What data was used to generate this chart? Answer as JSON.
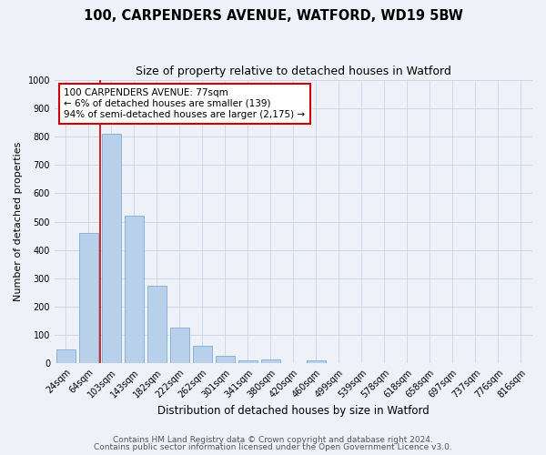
{
  "title1": "100, CARPENDERS AVENUE, WATFORD, WD19 5BW",
  "title2": "Size of property relative to detached houses in Watford",
  "xlabel": "Distribution of detached houses by size in Watford",
  "ylabel": "Number of detached properties",
  "categories": [
    "24sqm",
    "64sqm",
    "103sqm",
    "143sqm",
    "182sqm",
    "222sqm",
    "262sqm",
    "301sqm",
    "341sqm",
    "380sqm",
    "420sqm",
    "460sqm",
    "499sqm",
    "539sqm",
    "578sqm",
    "618sqm",
    "658sqm",
    "697sqm",
    "737sqm",
    "776sqm",
    "816sqm"
  ],
  "values": [
    50,
    460,
    810,
    520,
    275,
    125,
    60,
    25,
    10,
    12,
    0,
    10,
    0,
    0,
    0,
    0,
    0,
    0,
    0,
    0,
    0
  ],
  "bar_color": "#b8d0ea",
  "bar_edge_color": "#7aadd4",
  "grid_color": "#c8d4e8",
  "background_color": "#eef2f8",
  "vline_color": "#cc0000",
  "annotation_text": "100 CARPENDERS AVENUE: 77sqm\n← 6% of detached houses are smaller (139)\n94% of semi-detached houses are larger (2,175) →",
  "annotation_box_color": "#ffffff",
  "annotation_box_edge": "#cc0000",
  "ylim": [
    0,
    1000
  ],
  "yticks": [
    0,
    100,
    200,
    300,
    400,
    500,
    600,
    700,
    800,
    900,
    1000
  ],
  "footnote1": "Contains HM Land Registry data © Crown copyright and database right 2024.",
  "footnote2": "Contains public sector information licensed under the Open Government Licence v3.0.",
  "title1_fontsize": 10.5,
  "title2_fontsize": 9,
  "xlabel_fontsize": 8.5,
  "ylabel_fontsize": 8,
  "tick_fontsize": 7,
  "annotation_fontsize": 7.5,
  "footnote_fontsize": 6.5
}
